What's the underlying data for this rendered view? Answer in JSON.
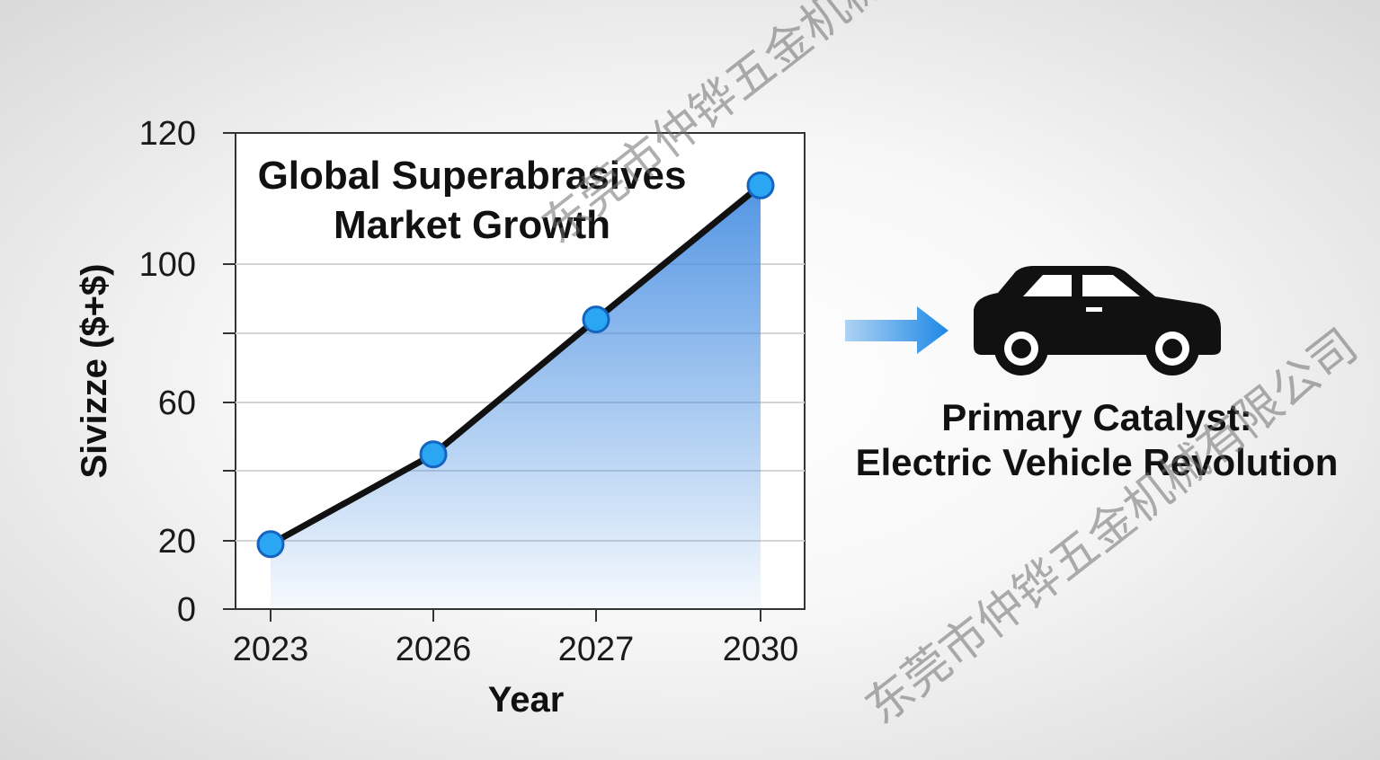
{
  "chart_data": {
    "type": "area",
    "title_lines": [
      "Global Superabrasives",
      "Market Growth"
    ],
    "xlabel": "Year",
    "ylabel": "Sivizze ($+$)",
    "categories": [
      "2023",
      "2026",
      "2027",
      "2030"
    ],
    "values": [
      19,
      45,
      84,
      112
    ],
    "yticks": [
      0,
      20,
      60,
      100,
      120
    ],
    "ylim": [
      0,
      140
    ],
    "grid": true,
    "line_color": "#111111",
    "marker_color": "#2aa6f2",
    "fill_color": "#4a90e2"
  },
  "catalyst": {
    "line1": "Primary Catalyst:",
    "line2": "Electric Vehicle Revolution",
    "icon": "car-icon",
    "arrow_icon": "arrow-right-icon",
    "arrow_color": "#1e88e5"
  },
  "watermark": {
    "text": "东莞市仲铧五金机械有限公司"
  }
}
